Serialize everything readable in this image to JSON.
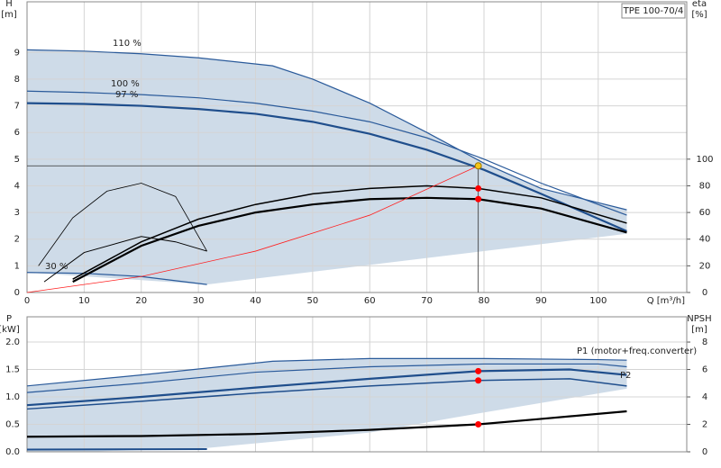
{
  "chart_data": [
    {
      "type": "line",
      "badge": "TPE 100-70/4",
      "y_label": [
        "H",
        "[m]"
      ],
      "y2_label": [
        "eta",
        "[%]"
      ],
      "x_label": "Q [m³/h]",
      "xlim": [
        0,
        115.5
      ],
      "xticks": [
        0,
        10,
        20,
        30,
        40,
        50,
        60,
        70,
        80,
        90,
        100
      ],
      "ylim": [
        0,
        10.9
      ],
      "yticks": [
        0,
        1,
        2,
        3,
        4,
        5,
        6,
        7,
        8,
        9
      ],
      "y2lim": [
        0,
        218
      ],
      "y2ticks": [
        0,
        20,
        40,
        60,
        80,
        100
      ],
      "grid": true,
      "region": {
        "color": "#c9d7e6",
        "x": [
          0,
          10,
          20,
          30,
          43,
          50,
          60,
          70,
          80,
          90,
          105,
          105,
          31.5,
          0
        ],
        "values": [
          9.1,
          9.05,
          8.95,
          8.8,
          8.5,
          8.0,
          7.1,
          6.0,
          4.85,
          3.9,
          3.1,
          2.2,
          0.3,
          0.75
        ]
      },
      "series": [
        {
          "name": "110 %",
          "color": "#2a5a9a",
          "width": 1.2,
          "x": [
            0,
            10,
            20,
            30,
            43,
            50,
            60,
            70,
            80,
            90,
            105
          ],
          "values": [
            9.1,
            9.05,
            8.95,
            8.8,
            8.5,
            8.0,
            7.1,
            6.0,
            4.85,
            3.9,
            3.1
          ]
        },
        {
          "name": "100 %",
          "color": "#2a5a9a",
          "width": 1.2,
          "x": [
            0,
            10,
            20,
            30,
            40,
            50,
            60,
            70,
            80,
            90,
            105
          ],
          "values": [
            7.55,
            7.5,
            7.42,
            7.3,
            7.1,
            6.8,
            6.4,
            5.8,
            5.0,
            4.1,
            2.9
          ]
        },
        {
          "name": "97 %",
          "color": "#1f4e8c",
          "width": 2.2,
          "x": [
            0,
            10,
            20,
            30,
            40,
            50,
            60,
            70,
            80,
            90,
            105
          ],
          "values": [
            7.1,
            7.07,
            7.0,
            6.88,
            6.7,
            6.4,
            5.95,
            5.35,
            4.6,
            3.7,
            2.3
          ]
        },
        {
          "name": "30 %",
          "color": "#2a5a9a",
          "width": 1.2,
          "x": [
            0,
            10,
            20,
            31.5
          ],
          "values": [
            0.75,
            0.72,
            0.6,
            0.3
          ]
        },
        {
          "color": "#000000",
          "width": 2.2,
          "axis": "y2",
          "x": [
            8,
            20,
            30,
            40,
            50,
            60,
            70,
            79,
            90,
            105
          ],
          "values": [
            8,
            35,
            50,
            60,
            66,
            70,
            71,
            70,
            63,
            45
          ]
        },
        {
          "color": "#000000",
          "width": 1.5,
          "axis": "y2",
          "x": [
            8,
            20,
            30,
            40,
            50,
            60,
            70,
            79,
            90,
            105
          ],
          "values": [
            10,
            38,
            55,
            66,
            74,
            78,
            80,
            78,
            71,
            52
          ]
        },
        {
          "color": "#000000",
          "width": 0.8,
          "axis": "y2",
          "x": [
            2,
            8,
            14,
            20,
            26,
            31.5
          ],
          "values": [
            20,
            56,
            76,
            82,
            72,
            31
          ]
        },
        {
          "color": "#000000",
          "width": 1,
          "axis": "y2",
          "x": [
            3,
            10,
            20,
            26,
            31.5
          ],
          "values": [
            8,
            30,
            42,
            38,
            31
          ]
        },
        {
          "color": "#ff2020",
          "width": 0.8,
          "x": [
            0,
            20,
            40,
            60,
            79
          ],
          "values": [
            0,
            0.6,
            1.55,
            2.9,
            4.75
          ]
        }
      ],
      "points": [
        {
          "x": 79,
          "y": 4.75,
          "color": "#f5c518",
          "crosshair": true
        },
        {
          "x": 79,
          "y": 78,
          "color": "#ff0000",
          "axis": "y2"
        },
        {
          "x": 79,
          "y": 70,
          "color": "#ff0000",
          "axis": "y2"
        }
      ]
    },
    {
      "type": "line",
      "y_label": [
        "P",
        "[kW]"
      ],
      "y2_label": [
        "NPSH",
        "[m]"
      ],
      "xlim": [
        0,
        115.5
      ],
      "xticks": [
        0,
        10,
        20,
        30,
        40,
        50,
        60,
        70,
        80,
        90,
        100
      ],
      "ylim": [
        0,
        2.46
      ],
      "yticks": [
        {
          "value": 0,
          "label": "0.0"
        },
        {
          "value": 0.5,
          "label": "0.5"
        },
        {
          "value": 1,
          "label": "1.0"
        },
        {
          "value": 1.5,
          "label": "1.5"
        },
        {
          "value": 2,
          "label": "2.0"
        }
      ],
      "y2lim": [
        0,
        9.84
      ],
      "y2ticks": [
        0,
        2,
        4,
        6,
        8
      ],
      "grid": true,
      "region": {
        "color": "#c9d7e6",
        "x": [
          0,
          10,
          20,
          43,
          60,
          80,
          105,
          105,
          79,
          60,
          31.5,
          10,
          0
        ],
        "values": [
          1.2,
          1.3,
          1.4,
          1.65,
          1.7,
          1.7,
          1.67,
          1.15,
          0.7,
          0.35,
          0.07,
          0.0,
          0.0
        ]
      },
      "series": [
        {
          "color": "#2a5a9a",
          "width": 1.2,
          "x": [
            0,
            20,
            43,
            60,
            80,
            100,
            105
          ],
          "values": [
            1.2,
            1.4,
            1.65,
            1.7,
            1.7,
            1.68,
            1.67
          ]
        },
        {
          "color": "#2a5a9a",
          "width": 1.2,
          "x": [
            0,
            20,
            40,
            60,
            80,
            100,
            105
          ],
          "values": [
            1.08,
            1.25,
            1.45,
            1.55,
            1.6,
            1.6,
            1.55
          ]
        },
        {
          "name": "P1 (motor+freq.converter)",
          "color": "#1f4e8c",
          "width": 2.2,
          "x": [
            0,
            20,
            40,
            60,
            79,
            95,
            105
          ],
          "values": [
            0.85,
            1.0,
            1.17,
            1.33,
            1.47,
            1.5,
            1.4
          ]
        },
        {
          "name": "P2",
          "color": "#1f4e8c",
          "width": 1.5,
          "x": [
            0,
            20,
            40,
            60,
            79,
            95,
            105
          ],
          "values": [
            0.78,
            0.92,
            1.07,
            1.2,
            1.3,
            1.33,
            1.2
          ]
        },
        {
          "color": "#1f4e8c",
          "width": 2,
          "x": [
            0,
            31.5
          ],
          "values": [
            0.04,
            0.05
          ]
        },
        {
          "color": "#000000",
          "width": 2.2,
          "axis": "y2",
          "x": [
            0,
            20,
            40,
            60,
            79,
            90,
            105
          ],
          "values": [
            1.1,
            1.15,
            1.3,
            1.6,
            2.0,
            2.4,
            2.95
          ]
        }
      ],
      "points": [
        {
          "x": 79,
          "y": 1.47,
          "color": "#ff0000"
        },
        {
          "x": 79,
          "y": 1.3,
          "color": "#ff0000"
        },
        {
          "x": 79,
          "y": 2.0,
          "color": "#ff0000",
          "axis": "y2"
        }
      ]
    }
  ]
}
